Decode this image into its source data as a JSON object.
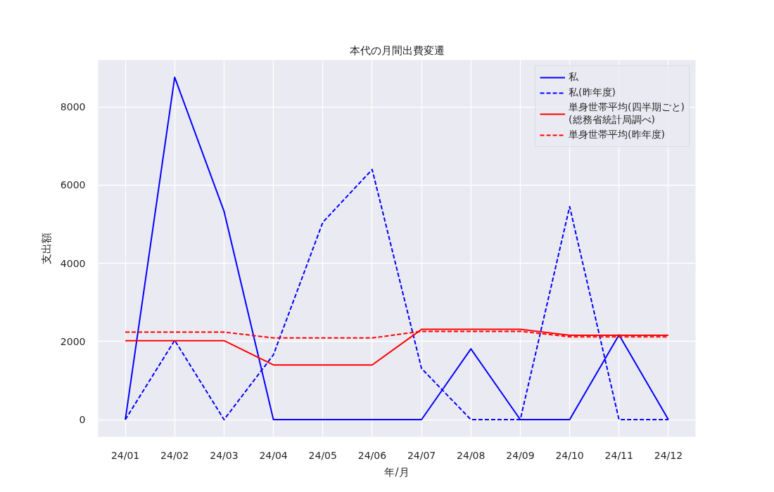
{
  "chart_data": {
    "type": "line",
    "title": "本代の月間出費変遷",
    "xlabel": "年/月",
    "ylabel": "支出額",
    "categories": [
      "24/01",
      "24/02",
      "24/03",
      "24/04",
      "24/05",
      "24/06",
      "24/07",
      "24/08",
      "24/09",
      "24/10",
      "24/11",
      "24/12"
    ],
    "series": [
      {
        "name": "私",
        "color": "#0000ff",
        "line_style": "solid",
        "values": [
          0,
          8760,
          5330,
          0,
          0,
          0,
          0,
          1810,
          0,
          0,
          2170,
          0
        ]
      },
      {
        "name": "私(昨年度)",
        "color": "#0000ff",
        "line_style": "dashed",
        "values": [
          0,
          2030,
          0,
          1660,
          5050,
          6400,
          1310,
          0,
          0,
          5450,
          0,
          0
        ]
      },
      {
        "name": "単身世帯平均(四半期ごと)\n(総務省統計局調べ)",
        "color": "#ff0000",
        "line_style": "solid",
        "values": [
          2020,
          2020,
          2020,
          1400,
          1400,
          1400,
          2310,
          2310,
          2310,
          2160,
          2160,
          2160
        ]
      },
      {
        "name": "単身世帯平均(昨年度)",
        "color": "#ff0000",
        "line_style": "dashed",
        "values": [
          2240,
          2240,
          2240,
          2090,
          2090,
          2090,
          2260,
          2260,
          2260,
          2120,
          2120,
          2120
        ]
      }
    ],
    "ylim": [
      -440,
      9200
    ],
    "yticks": [
      0,
      2000,
      4000,
      6000,
      8000
    ],
    "grid": true,
    "legend": "top right"
  }
}
